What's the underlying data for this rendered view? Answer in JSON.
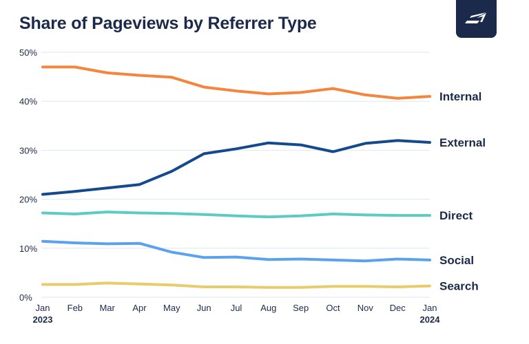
{
  "title": "Share of Pageviews by Referrer Type",
  "logo": {
    "icon": "brand-logo-icon"
  },
  "colors": {
    "title": "#1b2a4a",
    "axis_text": "#1b2a4a",
    "grid": "#dbe6f3"
  },
  "chart_data": {
    "type": "line",
    "title": "Share of Pageviews by Referrer Type",
    "x": [
      "Jan",
      "Feb",
      "Mar",
      "Apr",
      "May",
      "Jun",
      "Jul",
      "Aug",
      "Sep",
      "Oct",
      "Nov",
      "Dec",
      "Jan"
    ],
    "x_year_labels": [
      {
        "index": 0,
        "label": "2023"
      },
      {
        "index": 12,
        "label": "2024"
      }
    ],
    "yticks": [
      "0%",
      "10%",
      "20%",
      "30%",
      "40%",
      "50%"
    ],
    "ylim": [
      0,
      50
    ],
    "grid": true,
    "legend": "inline labels at right end of lines",
    "series": [
      {
        "name": "Internal",
        "color": "#f5843c",
        "values": [
          47.0,
          47.0,
          45.8,
          45.3,
          44.9,
          42.9,
          42.1,
          41.5,
          41.8,
          42.6,
          41.3,
          40.6,
          41.0
        ]
      },
      {
        "name": "External",
        "color": "#134a8e",
        "values": [
          21.0,
          21.6,
          22.3,
          23.0,
          25.7,
          29.3,
          30.3,
          31.5,
          31.1,
          29.7,
          31.4,
          32.0,
          31.6
        ]
      },
      {
        "name": "Direct",
        "color": "#5ccbc4",
        "values": [
          17.2,
          17.0,
          17.4,
          17.2,
          17.1,
          16.9,
          16.6,
          16.4,
          16.6,
          17.0,
          16.8,
          16.7,
          16.7
        ]
      },
      {
        "name": "Social",
        "color": "#5aa2ef",
        "values": [
          11.4,
          11.1,
          10.9,
          11.0,
          9.2,
          8.1,
          8.2,
          7.7,
          7.8,
          7.6,
          7.4,
          7.8,
          7.6
        ]
      },
      {
        "name": "Search",
        "color": "#e8cb6a",
        "values": [
          2.6,
          2.6,
          2.9,
          2.7,
          2.5,
          2.1,
          2.1,
          2.0,
          2.0,
          2.2,
          2.2,
          2.1,
          2.3
        ]
      }
    ]
  }
}
